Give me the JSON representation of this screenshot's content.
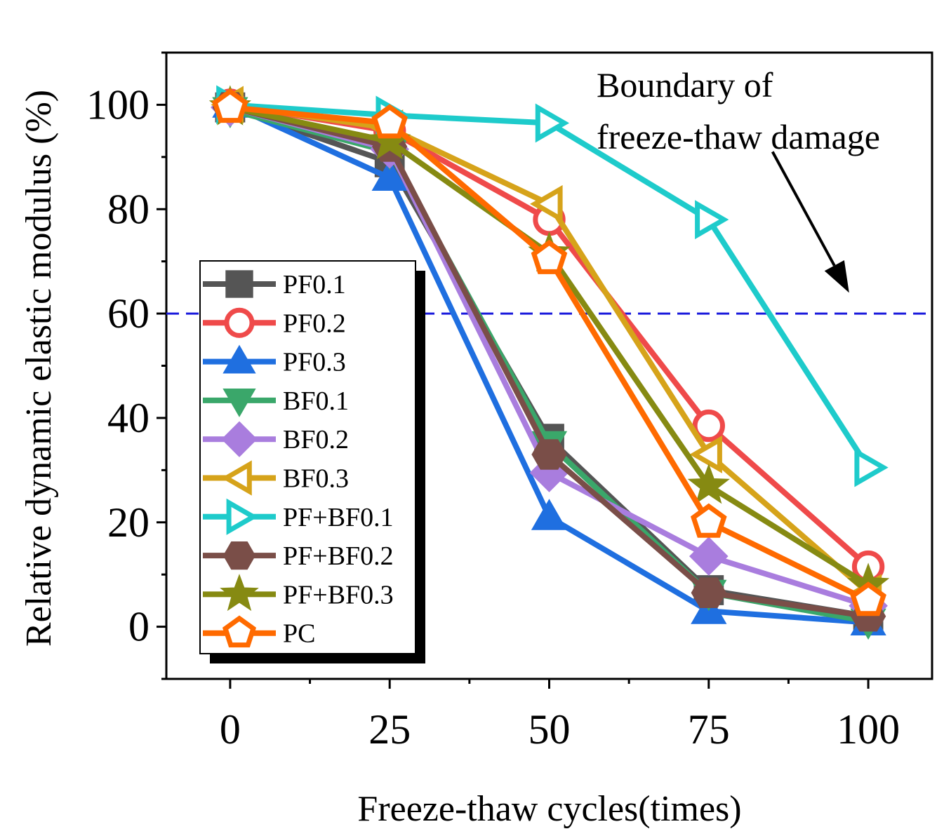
{
  "chart_data": {
    "type": "line",
    "xlabel": "Freeze-thaw cycles(times)",
    "ylabel": "Relative dynamic elastic modulus (%)",
    "xlim": [
      -10,
      110
    ],
    "ylim": [
      -10,
      110
    ],
    "xticks": [
      0,
      25,
      50,
      75,
      100
    ],
    "yticks": [
      0,
      20,
      40,
      60,
      80,
      100
    ],
    "x": [
      0,
      25,
      50,
      75,
      100
    ],
    "threshold": {
      "value": 60,
      "color": "#1a1adc",
      "style": "dashed"
    },
    "annotation": {
      "lines": [
        "Boundary of",
        "freeze-thaw damage"
      ],
      "arrow_from": [
        85,
        91
      ],
      "arrow_to": [
        97,
        64
      ]
    },
    "legend_position": "left-middle",
    "series": [
      {
        "name": "PF0.1",
        "color": "#555555",
        "marker": "square",
        "values": [
          99.5,
          89,
          36,
          7,
          2
        ]
      },
      {
        "name": "PF0.2",
        "color": "#ef4a4a",
        "marker": "circle",
        "values": [
          100,
          95,
          78,
          38.5,
          11.5
        ]
      },
      {
        "name": "PF0.3",
        "color": "#1f6fe0",
        "marker": "triangle-up",
        "values": [
          100,
          86,
          21,
          3,
          0.8
        ]
      },
      {
        "name": "BF0.1",
        "color": "#3aa76a",
        "marker": "triangle-down",
        "values": [
          99,
          91,
          35,
          6.5,
          1
        ]
      },
      {
        "name": "BF0.2",
        "color": "#a97dde",
        "marker": "diamond",
        "values": [
          99.5,
          91.5,
          29.5,
          13.5,
          4
        ]
      },
      {
        "name": "BF0.3",
        "color": "#d6a31a",
        "marker": "triangle-left",
        "values": [
          100,
          95.5,
          81,
          33,
          6.5
        ]
      },
      {
        "name": "PF+BF0.1",
        "color": "#1ecbcb",
        "marker": "triangle-right",
        "values": [
          100,
          98,
          96.5,
          78,
          30.5
        ]
      },
      {
        "name": "PF+BF0.2",
        "color": "#7a4e48",
        "marker": "hexagon",
        "values": [
          99.5,
          92,
          33,
          6.5,
          2
        ]
      },
      {
        "name": "PF+BF0.3",
        "color": "#868a12",
        "marker": "star",
        "values": [
          99.5,
          93,
          71.5,
          27,
          8
        ]
      },
      {
        "name": "PC",
        "color": "#ff6a00",
        "marker": "pentagon",
        "values": [
          99.5,
          96.5,
          70.5,
          20,
          5
        ]
      }
    ]
  }
}
